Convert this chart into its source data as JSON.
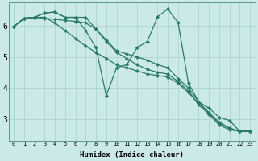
{
  "xlabel": "Humidex (Indice chaleur)",
  "bg_color": "#cce9e9",
  "line_color": "#2a7a6a",
  "grid_color": "#aed4d4",
  "xlim": [
    -0.5,
    23.5
  ],
  "ylim": [
    2.3,
    6.75
  ],
  "xticks": [
    0,
    1,
    2,
    3,
    4,
    5,
    6,
    7,
    8,
    9,
    10,
    11,
    12,
    13,
    14,
    15,
    16,
    17,
    18,
    19,
    20,
    21,
    22,
    23
  ],
  "yticks": [
    3,
    4,
    5,
    6
  ],
  "series": [
    {
      "x": [
        0,
        1,
        2,
        3,
        4,
        5,
        6,
        7,
        8,
        9,
        10,
        11,
        12,
        13,
        14,
        15,
        16,
        17,
        18,
        19,
        20,
        21,
        22,
        23
      ],
      "y": [
        5.98,
        6.25,
        6.28,
        6.28,
        6.1,
        5.85,
        5.6,
        5.35,
        5.15,
        4.95,
        4.75,
        4.65,
        4.55,
        4.45,
        4.4,
        4.35,
        4.15,
        3.85,
        3.5,
        3.2,
        2.9,
        2.7,
        2.6,
        2.6
      ]
    },
    {
      "x": [
        0,
        1,
        2,
        3,
        4,
        5,
        6,
        7,
        8,
        9,
        10,
        11,
        12,
        13,
        14,
        15,
        16,
        17,
        18,
        19,
        20,
        21,
        22,
        23
      ],
      "y": [
        5.98,
        6.25,
        6.28,
        6.25,
        6.22,
        6.18,
        6.15,
        6.1,
        5.9,
        5.55,
        5.2,
        5.1,
        5.0,
        4.9,
        4.75,
        4.65,
        4.3,
        4.0,
        3.55,
        3.2,
        2.85,
        2.7,
        2.6,
        2.6
      ]
    },
    {
      "x": [
        0,
        1,
        2,
        3,
        4,
        5,
        6,
        7,
        8,
        9,
        10,
        11,
        12,
        13,
        14,
        15,
        16,
        17,
        18,
        19,
        20,
        21,
        22,
        23
      ],
      "y": [
        5.98,
        6.25,
        6.28,
        6.42,
        6.45,
        6.28,
        6.28,
        6.28,
        5.9,
        5.5,
        5.15,
        4.95,
        4.75,
        4.6,
        4.5,
        4.45,
        4.2,
        3.9,
        3.45,
        3.15,
        2.8,
        2.65,
        2.6,
        2.6
      ]
    },
    {
      "x": [
        0,
        1,
        2,
        3,
        4,
        5,
        6,
        7,
        8,
        9,
        10,
        11,
        12,
        13,
        14,
        15,
        16,
        17,
        18,
        19,
        20,
        21,
        22,
        23
      ],
      "y": [
        5.98,
        6.25,
        6.28,
        6.42,
        6.45,
        6.28,
        6.28,
        5.85,
        5.3,
        3.75,
        4.65,
        4.75,
        5.3,
        5.5,
        6.3,
        6.55,
        6.1,
        4.15,
        3.55,
        3.35,
        3.05,
        2.95,
        2.6,
        2.6
      ]
    }
  ],
  "marker": "D",
  "markersize": 2.2,
  "linewidth": 0.9
}
